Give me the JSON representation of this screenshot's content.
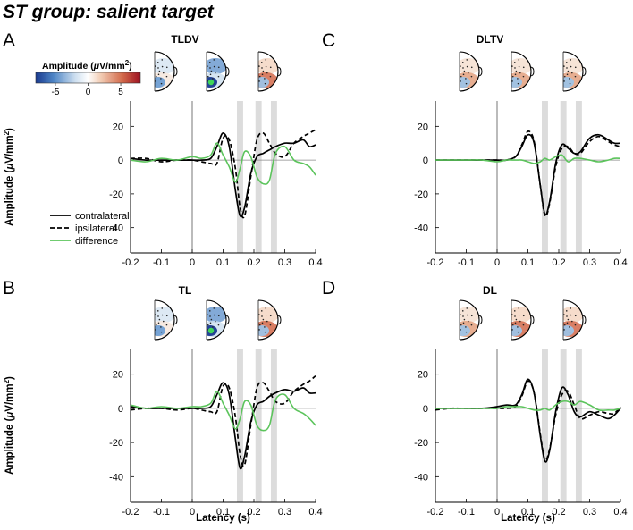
{
  "figure_title": "ST group: salient target",
  "colorbar": {
    "title_prefix": "Amplitude (",
    "title_mu": "μ",
    "title_suffix": "V/mm",
    "title_sup": "2",
    "title_close": ")",
    "ticks": [
      "-5",
      "0",
      "5"
    ],
    "tick_values": [
      -5,
      0,
      5
    ],
    "range": [
      -8,
      8
    ],
    "colors": [
      "#1a3a8f",
      "#4f86c6",
      "#cfe0f0",
      "#ffffff",
      "#f2cdb5",
      "#d2694a",
      "#9e1020"
    ]
  },
  "legend": {
    "items": [
      {
        "key": "contralateral",
        "label": "contralateral",
        "color": "#000000",
        "dash": "solid"
      },
      {
        "key": "ipsilateral",
        "label": "ipsilateral",
        "color": "#000000",
        "dash": "dashed"
      },
      {
        "key": "difference",
        "label": "difference",
        "color": "#5cc45c",
        "dash": "solid"
      }
    ]
  },
  "axis_labels": {
    "y_prefix": "Amplitude (",
    "y_mu": "μ",
    "y_suffix": "V/mm",
    "y_sup": "2",
    "y_close": ")",
    "x": "Latency (s)"
  },
  "chart_data": [
    {
      "panel": "A",
      "title": "TLDV",
      "type": "line",
      "xlim": [
        -0.2,
        0.4
      ],
      "ylim": [
        -55,
        35
      ],
      "xticks": [
        "-0.2",
        "-0.1",
        "0",
        "0.1",
        "0.2",
        "0.3",
        "0.4"
      ],
      "xtick_values": [
        -0.2,
        -0.1,
        0,
        0.1,
        0.2,
        0.3,
        0.4
      ],
      "yticks": [
        "20",
        "0",
        "-20",
        "-40"
      ],
      "ytick_values": [
        20,
        0,
        -20,
        -40
      ],
      "shaded_windows": [
        [
          0.145,
          0.165
        ],
        [
          0.205,
          0.225
        ],
        [
          0.255,
          0.275
        ]
      ],
      "x": [
        -0.2,
        -0.15,
        -0.1,
        -0.05,
        0,
        0.03,
        0.06,
        0.08,
        0.1,
        0.12,
        0.14,
        0.155,
        0.17,
        0.19,
        0.21,
        0.23,
        0.25,
        0.27,
        0.3,
        0.33,
        0.36,
        0.38,
        0.4
      ],
      "series": [
        {
          "name": "contralateral",
          "values": [
            1,
            0,
            0,
            0,
            0,
            0,
            1,
            8,
            16,
            8,
            -18,
            -33,
            -28,
            -8,
            2,
            4,
            6,
            8,
            10,
            10,
            12,
            8,
            9
          ]
        },
        {
          "name": "ipsilateral",
          "values": [
            1,
            1,
            -1,
            0,
            0,
            -1,
            -2,
            -2,
            13,
            12,
            -5,
            -28,
            -33,
            -10,
            12,
            16,
            10,
            4,
            2,
            10,
            14,
            16,
            18
          ]
        },
        {
          "name": "difference",
          "values": [
            0,
            -1,
            1,
            0,
            2,
            1,
            3,
            10,
            3,
            -4,
            -13,
            -5,
            5,
            2,
            -10,
            -14,
            -12,
            4,
            8,
            0,
            -2,
            -4,
            -9
          ]
        }
      ],
      "topomaps": [
        {
          "green": false,
          "tint": "blue"
        },
        {
          "green": true,
          "tint": "strong-blue"
        },
        {
          "green": false,
          "tint": "warm"
        }
      ]
    },
    {
      "panel": "C",
      "title": "DLTV",
      "type": "line",
      "xlim": [
        -0.2,
        0.4
      ],
      "ylim": [
        -55,
        35
      ],
      "xticks": [
        "-0.2",
        "-0.1",
        "0",
        "0.1",
        "0.2",
        "0.3",
        "0.4"
      ],
      "xtick_values": [
        -0.2,
        -0.1,
        0,
        0.1,
        0.2,
        0.3,
        0.4
      ],
      "yticks": [
        "20",
        "0",
        "-20",
        "-40"
      ],
      "ytick_values": [
        20,
        0,
        -20,
        -40
      ],
      "shaded_windows": [
        [
          0.145,
          0.165
        ],
        [
          0.205,
          0.225
        ],
        [
          0.255,
          0.275
        ]
      ],
      "x": [
        -0.2,
        -0.15,
        -0.1,
        -0.05,
        0,
        0.03,
        0.06,
        0.08,
        0.1,
        0.12,
        0.14,
        0.155,
        0.17,
        0.19,
        0.21,
        0.23,
        0.25,
        0.27,
        0.3,
        0.33,
        0.36,
        0.38,
        0.4
      ],
      "series": [
        {
          "name": "contralateral",
          "values": [
            0,
            0,
            0,
            0,
            0,
            0,
            2,
            8,
            15,
            10,
            -15,
            -32,
            -25,
            -2,
            9,
            7,
            4,
            5,
            13,
            15,
            12,
            10,
            10
          ]
        },
        {
          "name": "ipsilateral",
          "values": [
            0,
            0,
            0,
            0,
            0,
            0,
            2,
            9,
            17,
            11,
            -15,
            -33,
            -26,
            -4,
            7,
            8,
            4,
            4,
            11,
            14,
            11,
            9,
            8
          ]
        },
        {
          "name": "difference",
          "values": [
            0,
            0,
            0,
            0,
            -1,
            0,
            0,
            0,
            -1,
            -2,
            -1,
            1,
            0,
            2,
            3,
            -1,
            1,
            1,
            0,
            -1,
            0,
            1,
            1
          ]
        }
      ],
      "topomaps": [
        {
          "green": false,
          "tint": "mixed"
        },
        {
          "green": false,
          "tint": "mixed"
        },
        {
          "green": false,
          "tint": "mixed"
        }
      ]
    },
    {
      "panel": "B",
      "title": "TL",
      "type": "line",
      "xlim": [
        -0.2,
        0.4
      ],
      "ylim": [
        -55,
        35
      ],
      "xticks": [
        "-0.2",
        "-0.1",
        "0",
        "0.1",
        "0.2",
        "0.3",
        "0.4"
      ],
      "xtick_values": [
        -0.2,
        -0.1,
        0,
        0.1,
        0.2,
        0.3,
        0.4
      ],
      "yticks": [
        "20",
        "0",
        "-20",
        "-40"
      ],
      "ytick_values": [
        20,
        0,
        -20,
        -40
      ],
      "shaded_windows": [
        [
          0.145,
          0.165
        ],
        [
          0.205,
          0.225
        ],
        [
          0.255,
          0.275
        ]
      ],
      "x": [
        -0.2,
        -0.15,
        -0.1,
        -0.05,
        0,
        0.03,
        0.06,
        0.08,
        0.1,
        0.12,
        0.14,
        0.155,
        0.17,
        0.19,
        0.21,
        0.23,
        0.25,
        0.27,
        0.3,
        0.33,
        0.36,
        0.38,
        0.4
      ],
      "series": [
        {
          "name": "contralateral",
          "values": [
            1,
            0,
            0,
            0,
            0,
            0,
            1,
            8,
            15,
            8,
            -18,
            -35,
            -28,
            -8,
            2,
            4,
            7,
            9,
            11,
            10,
            12,
            9,
            9
          ]
        },
        {
          "name": "ipsilateral",
          "values": [
            -1,
            0,
            0,
            -1,
            0,
            -1,
            -2,
            -2,
            13,
            12,
            -5,
            -27,
            -33,
            -10,
            12,
            15,
            10,
            4,
            3,
            10,
            14,
            16,
            19
          ]
        },
        {
          "name": "difference",
          "values": [
            2,
            0,
            1,
            0,
            1,
            1,
            3,
            10,
            3,
            -4,
            -12,
            -6,
            4,
            2,
            -10,
            -13,
            -10,
            5,
            8,
            0,
            -3,
            -6,
            -10
          ]
        }
      ],
      "topomaps": [
        {
          "green": false,
          "tint": "blue"
        },
        {
          "green": true,
          "tint": "strong-blue"
        },
        {
          "green": false,
          "tint": "warm"
        }
      ]
    },
    {
      "panel": "D",
      "title": "DL",
      "type": "line",
      "xlim": [
        -0.2,
        0.4
      ],
      "ylim": [
        -55,
        35
      ],
      "xticks": [
        "-0.2",
        "-0.1",
        "0",
        "0.1",
        "0.2",
        "0.3",
        "0.4"
      ],
      "xtick_values": [
        -0.2,
        -0.1,
        0,
        0.1,
        0.2,
        0.3,
        0.4
      ],
      "yticks": [
        "20",
        "0",
        "-20",
        "-40"
      ],
      "ytick_values": [
        20,
        0,
        -20,
        -40
      ],
      "shaded_windows": [
        [
          0.145,
          0.165
        ],
        [
          0.205,
          0.225
        ],
        [
          0.255,
          0.275
        ]
      ],
      "x": [
        -0.2,
        -0.15,
        -0.1,
        -0.05,
        0,
        0.03,
        0.06,
        0.08,
        0.1,
        0.12,
        0.14,
        0.155,
        0.17,
        0.19,
        0.21,
        0.23,
        0.25,
        0.27,
        0.3,
        0.33,
        0.36,
        0.38,
        0.4
      ],
      "series": [
        {
          "name": "contralateral",
          "values": [
            0,
            0,
            0,
            0,
            1,
            2,
            2,
            8,
            17,
            9,
            -16,
            -31,
            -25,
            -2,
            12,
            8,
            -2,
            -5,
            -2,
            -4,
            -6,
            -4,
            0
          ]
        },
        {
          "name": "ipsilateral",
          "values": [
            -1,
            0,
            0,
            0,
            0,
            0,
            1,
            7,
            16,
            9,
            -15,
            -30,
            -24,
            -4,
            8,
            10,
            2,
            -6,
            -4,
            -2,
            -3,
            -3,
            1
          ]
        },
        {
          "name": "difference",
          "values": [
            0,
            0,
            0,
            0,
            0,
            1,
            1,
            1,
            0,
            -1,
            -1,
            0,
            -1,
            2,
            4,
            4,
            2,
            4,
            2,
            -1,
            -1,
            -1,
            0
          ]
        }
      ],
      "topomaps": [
        {
          "green": false,
          "tint": "mixed"
        },
        {
          "green": false,
          "tint": "warm"
        },
        {
          "green": false,
          "tint": "warm"
        }
      ]
    }
  ]
}
